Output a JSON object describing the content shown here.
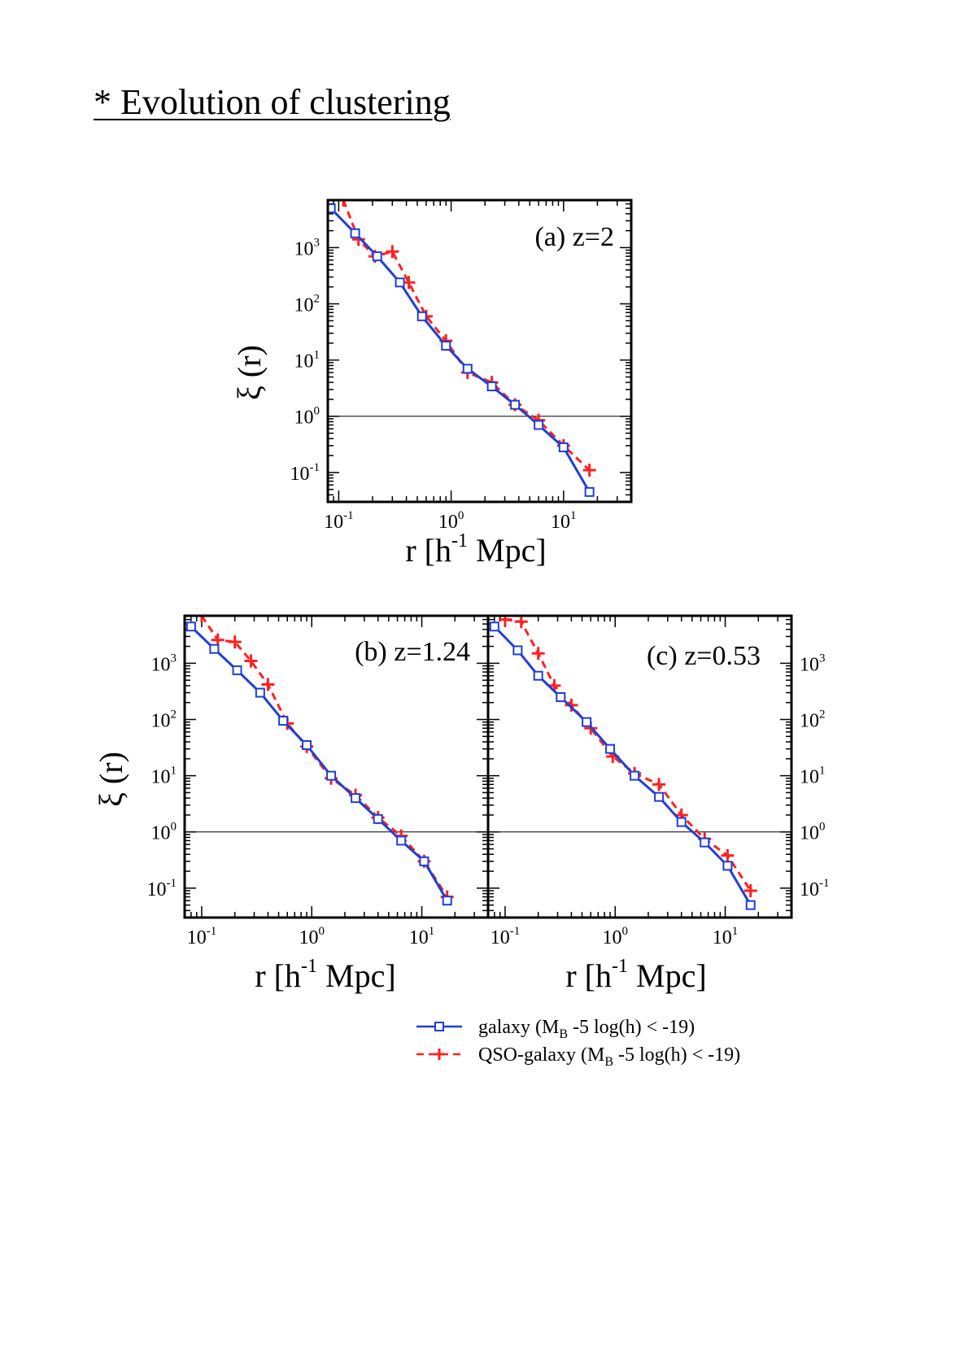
{
  "title": "* Evolution of clustering",
  "colors": {
    "galaxy": "#1f3fd6",
    "qso": "#ff2020",
    "axis": "#000000"
  },
  "legend": {
    "galaxy": {
      "pre": "galaxy (M",
      "sub": "B",
      "post": " -5 log(h) < -19)"
    },
    "qso": {
      "pre": "QSO-galaxy (M",
      "sub": "B",
      "post": " -5 log(h) < -19)"
    }
  },
  "ylabel": "ξ (r)",
  "chart_data": [
    {
      "type": "line",
      "panel": "a",
      "title": "(a) z=2",
      "xlabel": "r [h^-1 Mpc]",
      "ylabel": "ξ (r)",
      "xscale": "log",
      "yscale": "log",
      "xlim": [
        0.08,
        40
      ],
      "ylim": [
        0.03,
        7000
      ],
      "xticks": [
        "10^-1",
        "10^0",
        "10^1"
      ],
      "yticks": [
        "10^-1",
        "10^0",
        "10^1",
        "10^2",
        "10^3"
      ],
      "reference_line_y": 1,
      "series": [
        {
          "name": "galaxy (M_B -5 log(h) < -19)",
          "marker": "square",
          "style": "solid",
          "x": [
            0.085,
            0.14,
            0.22,
            0.35,
            0.55,
            0.9,
            1.4,
            2.3,
            3.7,
            6.0,
            10.0,
            17.0
          ],
          "y": [
            5000,
            1800,
            700,
            240,
            60,
            18,
            7,
            3.4,
            1.6,
            0.7,
            0.28,
            0.045
          ]
        },
        {
          "name": "QSO-galaxy (M_B -5 log(h) < -19)",
          "marker": "plus",
          "style": "dashed",
          "x": [
            0.11,
            0.15,
            0.21,
            0.3,
            0.42,
            0.6,
            0.9,
            1.4,
            2.3,
            3.7,
            6.0,
            10.0,
            17.0
          ],
          "y": [
            7000,
            1400,
            700,
            850,
            240,
            60,
            22,
            6,
            4,
            1.6,
            0.85,
            0.3,
            0.11
          ]
        }
      ]
    },
    {
      "type": "line",
      "panel": "b",
      "title": "(b) z=1.24",
      "xlabel": "r [h^-1 Mpc]",
      "ylabel": "ξ (r)",
      "xscale": "log",
      "yscale": "log",
      "xlim": [
        0.07,
        40
      ],
      "ylim": [
        0.03,
        7000
      ],
      "xticks": [
        "10^-1",
        "10^0",
        "10^1"
      ],
      "yticks": [
        "10^-1",
        "10^0",
        "10^1",
        "10^2",
        "10^3"
      ],
      "reference_line_y": 1,
      "series": [
        {
          "name": "galaxy (M_B -5 log(h) < -19)",
          "marker": "square",
          "style": "solid",
          "x": [
            0.08,
            0.13,
            0.21,
            0.34,
            0.55,
            0.9,
            1.5,
            2.5,
            4.0,
            6.5,
            10.5,
            17.0
          ],
          "y": [
            4500,
            1800,
            750,
            300,
            95,
            35,
            10,
            4,
            1.7,
            0.7,
            0.3,
            0.06
          ]
        },
        {
          "name": "QSO-galaxy (M_B -5 log(h) < -19)",
          "marker": "plus",
          "style": "dashed",
          "x": [
            0.1,
            0.14,
            0.2,
            0.28,
            0.4,
            0.6,
            0.9,
            1.5,
            2.5,
            4.0,
            6.5,
            10.5,
            17.0
          ],
          "y": [
            7000,
            2600,
            2400,
            1100,
            420,
            85,
            33,
            9,
            4.5,
            1.8,
            0.85,
            0.3,
            0.07
          ]
        }
      ]
    },
    {
      "type": "line",
      "panel": "c",
      "title": "(c) z=0.53",
      "xlabel": "r [h^-1 Mpc]",
      "ylabel": "ξ (r)",
      "xscale": "log",
      "yscale": "log",
      "xlim": [
        0.07,
        40
      ],
      "ylim": [
        0.03,
        7000
      ],
      "xticks": [
        "10^-1",
        "10^0",
        "10^1"
      ],
      "yticks": [
        "10^-1",
        "10^0",
        "10^1",
        "10^2",
        "10^3"
      ],
      "reference_line_y": 1,
      "series": [
        {
          "name": "galaxy (M_B -5 log(h) < -19)",
          "marker": "square",
          "style": "solid",
          "x": [
            0.08,
            0.13,
            0.2,
            0.32,
            0.55,
            0.9,
            1.5,
            2.5,
            4.0,
            6.5,
            10.5,
            17.0
          ],
          "y": [
            4500,
            1700,
            600,
            250,
            90,
            30,
            10,
            4.2,
            1.5,
            0.65,
            0.25,
            0.05
          ]
        },
        {
          "name": "QSO-galaxy (M_B -5 log(h) < -19)",
          "marker": "plus",
          "style": "dashed",
          "x": [
            0.1,
            0.14,
            0.2,
            0.28,
            0.4,
            0.6,
            0.95,
            1.5,
            2.5,
            4.0,
            6.5,
            10.5,
            17.0
          ],
          "y": [
            6000,
            5500,
            1500,
            400,
            180,
            70,
            22,
            11,
            7,
            2,
            0.75,
            0.38,
            0.09
          ]
        }
      ]
    }
  ]
}
